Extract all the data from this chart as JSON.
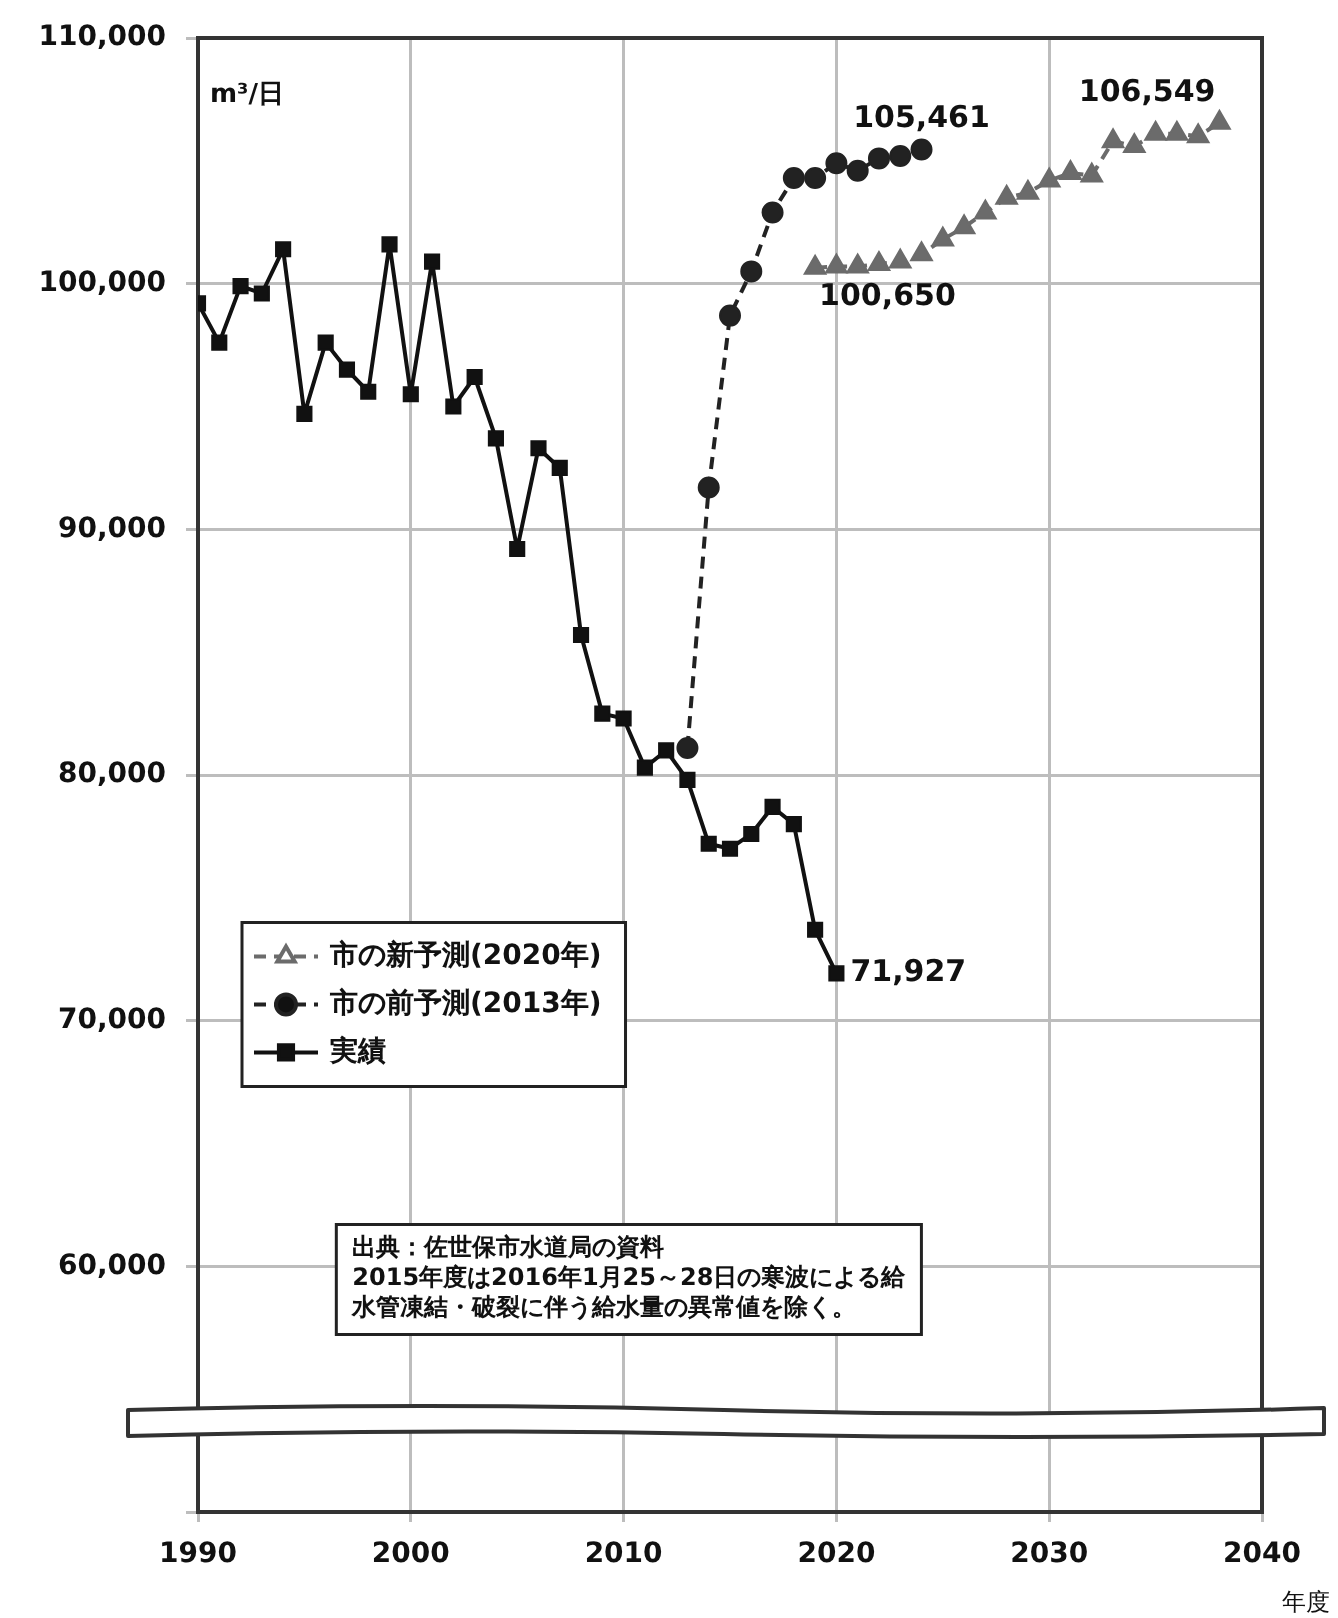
{
  "chart_data": {
    "type": "line",
    "ylabel": "m³/日",
    "xlabel": "年度",
    "xlim": [
      1990,
      2040
    ],
    "xticks": [
      1990,
      2000,
      2010,
      2020,
      2030,
      2040
    ],
    "ylim": [
      50000,
      110000
    ],
    "yticks": [
      {
        "value": 50000,
        "label": null
      },
      {
        "value": 60000,
        "label": "60,000"
      },
      {
        "value": 70000,
        "label": "70,000"
      },
      {
        "value": 80000,
        "label": "80,000"
      },
      {
        "value": 90000,
        "label": "90,000"
      },
      {
        "value": 100000,
        "label": "100,000"
      },
      {
        "value": 110000,
        "label": "110,000"
      }
    ],
    "grid": true,
    "legend": "center left",
    "series": [
      {
        "name": "市の新予測(2020年)",
        "color": "#6b6b6b",
        "marker": "triangle",
        "line_style": "dashed",
        "x": [
          2019,
          2020,
          2021,
          2022,
          2023,
          2024,
          2025,
          2026,
          2027,
          2028,
          2029,
          2030,
          2031,
          2032,
          2033,
          2034,
          2035,
          2036,
          2037,
          2038
        ],
        "values": [
          100650,
          100700,
          100700,
          100800,
          100900,
          101200,
          101800,
          102300,
          102900,
          103500,
          103700,
          104200,
          104500,
          104400,
          105800,
          105600,
          106100,
          106100,
          106000,
          106549
        ]
      },
      {
        "name": "市の前予測(2013年)",
        "color": "#222222",
        "marker": "circle",
        "line_style": "dashed",
        "x": [
          2013,
          2014,
          2015,
          2016,
          2017,
          2018,
          2019,
          2020,
          2021,
          2022,
          2023,
          2024
        ],
        "values": [
          81100,
          91700,
          98700,
          100500,
          102900,
          104300,
          104300,
          104900,
          104600,
          105100,
          105200,
          105461
        ]
      },
      {
        "name": "実績",
        "color": "#111111",
        "marker": "square",
        "line_style": "solid",
        "x": [
          1990,
          1991,
          1992,
          1993,
          1994,
          1995,
          1996,
          1997,
          1998,
          1999,
          2000,
          2001,
          2002,
          2003,
          2004,
          2005,
          2006,
          2007,
          2008,
          2009,
          2010,
          2011,
          2012,
          2013,
          2014,
          2015,
          2016,
          2017,
          2018,
          2019,
          2020
        ],
        "values": [
          99200,
          97600,
          99900,
          99600,
          101400,
          94700,
          97600,
          96500,
          95600,
          101600,
          95500,
          100900,
          95000,
          96200,
          93700,
          89200,
          93300,
          92500,
          85700,
          82500,
          82300,
          80300,
          81000,
          79800,
          77200,
          77000,
          77600,
          78700,
          78000,
          73700,
          71927
        ]
      }
    ],
    "annotations": [
      {
        "text": "105,461",
        "x": 2024,
        "y": 105461
      },
      {
        "text": "106,549",
        "x": 2038,
        "y": 106549
      },
      {
        "text": "100,650",
        "x": 2019,
        "y": 100650
      },
      {
        "text": "71,927",
        "x": 2020,
        "y": 71927
      },
      "出典：佐世保市水道局の資料",
      "2015年度は2016年1月25～28日の寒波による給水管凍結・破裂に伴う給水量の異常値を除く。"
    ]
  }
}
